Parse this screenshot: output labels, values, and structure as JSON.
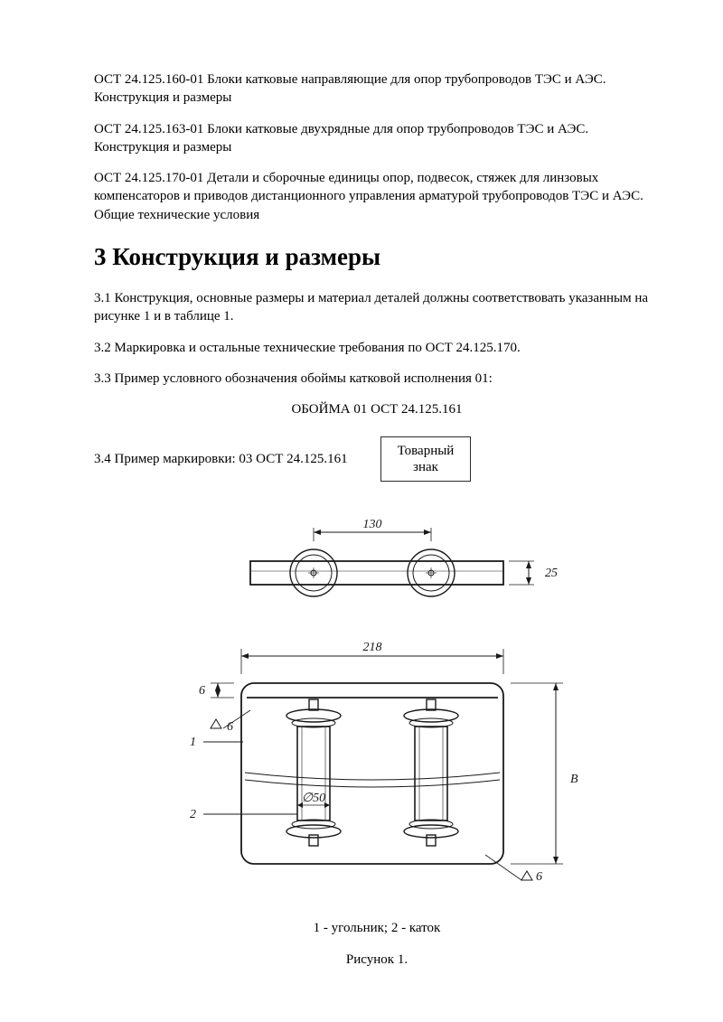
{
  "refs": {
    "ref1": "ОСТ 24.125.160-01 Блоки катковые направляющие для опор трубопроводов ТЭС и АЭС. Конструкция и размеры",
    "ref2": "ОСТ 24.125.163-01 Блоки катковые двухрядные для опор трубопроводов ТЭС и АЭС. Конструкция и размеры",
    "ref3": "ОСТ 24.125.170-01 Детали и сборочные единицы опор, подвесок, стяжек для линзовых компенсаторов и приводов дистанционного управления арматурой трубопроводов ТЭС и АЭС. Общие технические условия"
  },
  "section": {
    "heading": "3 Конструкция и размеры",
    "p31": "3.1 Конструкция, основные размеры и материал деталей должны соответствовать указанным на рисунке 1 и в таблице 1.",
    "p32": "3.2 Маркировка и остальные технические требования по ОСТ 24.125.170.",
    "p33": "3.3 Пример условного обозначения обоймы катковой исполнения 01:",
    "designation": "ОБОЙМА 01 ОСТ 24.125.161",
    "p34": "3.4 Пример маркировки: 03 ОСТ 24.125.161",
    "trademark_l1": "Товарный",
    "trademark_l2": "знак"
  },
  "figure": {
    "legend": "1 - угольник; 2 - каток",
    "caption": "Рисунок 1.",
    "dims": {
      "d130": "130",
      "d218": "218",
      "d25": "25",
      "d6a": "6",
      "d6b": "6",
      "d6c": "6",
      "diam50": "∅50",
      "B": "B",
      "callout1": "1",
      "callout2": "2"
    },
    "style": {
      "stroke": "#1a1a1a",
      "stroke_thin": 1,
      "stroke_med": 1.6,
      "fill_none": "none",
      "text_color": "#1a1a1a",
      "italic_font": "italic 14px 'Times New Roman'",
      "dim_font": "14px 'Times New Roman'"
    }
  }
}
